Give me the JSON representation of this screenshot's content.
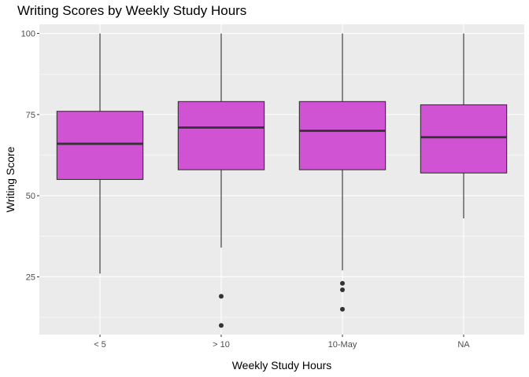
{
  "chart_data": {
    "type": "boxplot",
    "title": "Writing Scores by Weekly Study Hours",
    "xlabel": "Weekly Study Hours",
    "ylabel": "Writing Score",
    "categories": [
      "< 5",
      "> 10",
      "10-May",
      "NA"
    ],
    "boxes": [
      {
        "category": "< 5",
        "whisker_low": 26,
        "q1": 55,
        "median": 66,
        "q3": 76,
        "whisker_high": 100,
        "outliers": []
      },
      {
        "category": "> 10",
        "whisker_low": 34,
        "q1": 58,
        "median": 71,
        "q3": 79,
        "whisker_high": 100,
        "outliers": [
          19,
          10
        ]
      },
      {
        "category": "10-May",
        "whisker_low": 27,
        "q1": 58,
        "median": 70,
        "q3": 79,
        "whisker_high": 100,
        "outliers": [
          23,
          21,
          15
        ]
      },
      {
        "category": "NA",
        "whisker_low": 43,
        "q1": 57,
        "median": 68,
        "q3": 78,
        "whisker_high": 100,
        "outliers": []
      }
    ],
    "y_ticks": [
      25,
      50,
      75,
      100
    ],
    "ylim": [
      7.2,
      102.8
    ],
    "grid": true,
    "colors": {
      "box_fill": "#D053D3",
      "box_stroke": "#333333",
      "panel_bg": "#EBEBEB",
      "grid_major": "#FFFFFF",
      "outlier": "#333333"
    }
  }
}
